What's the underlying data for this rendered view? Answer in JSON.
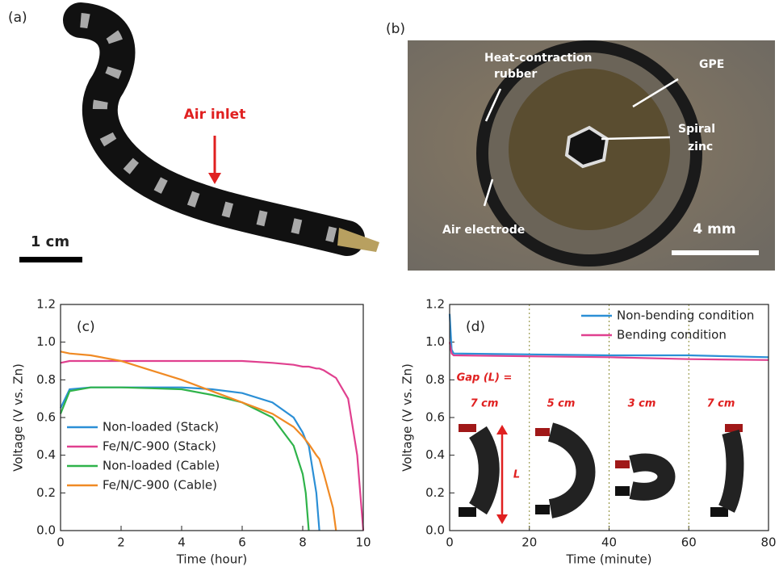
{
  "photos": {
    "a": {
      "label": "(a)",
      "inlet": "Air inlet",
      "scale": "1 cm"
    },
    "b": {
      "label": "(b)",
      "rubber": [
        "Heat-contraction",
        "rubber"
      ],
      "gpe": "GPE",
      "zinc": [
        "Spiral",
        "zinc"
      ],
      "electrode": "Air electrode",
      "scale": "4 mm"
    }
  },
  "chart_data": [
    {
      "type": "line",
      "label": "(c)",
      "xlabel": "Time (hour)",
      "ylabel": "Voltage (V vs. Zn)",
      "x": [
        0,
        0.3,
        1,
        2,
        3,
        4,
        5,
        6,
        7,
        7.7,
        8,
        8.1,
        8.2,
        8.45,
        8.55,
        8.7,
        9,
        9.1,
        9.5,
        9.8,
        10
      ],
      "series": [
        {
          "name": "Non-loaded (Stack)",
          "color": "#2b8fd6",
          "values": [
            0.65,
            0.75,
            0.76,
            0.76,
            0.76,
            0.76,
            0.75,
            0.73,
            0.68,
            0.6,
            0.52,
            0.48,
            0.45,
            0.2,
            0,
            null,
            null,
            null,
            null,
            null,
            null
          ]
        },
        {
          "name": "Fe/N/C-900 (Stack)",
          "color": "#e0408f",
          "values": [
            0.89,
            0.9,
            0.9,
            0.9,
            0.9,
            0.9,
            0.9,
            0.9,
            0.89,
            0.88,
            0.87,
            0.87,
            0.87,
            0.86,
            0.86,
            0.85,
            0.82,
            0.81,
            0.7,
            0.4,
            0
          ]
        },
        {
          "name": "Non-loaded (Cable)",
          "color": "#2fb34a",
          "values": [
            0.62,
            0.74,
            0.76,
            0.76,
            0.755,
            0.75,
            0.72,
            0.68,
            0.6,
            0.45,
            0.3,
            0.2,
            0,
            null,
            null,
            null,
            null,
            null,
            null,
            null,
            null
          ]
        },
        {
          "name": "Fe/N/C-900 (Cable)",
          "color": "#f08a24",
          "values": [
            0.95,
            0.94,
            0.93,
            0.9,
            0.85,
            0.8,
            0.74,
            0.68,
            0.62,
            0.55,
            0.5,
            0.48,
            0.46,
            0.4,
            0.38,
            0.3,
            0.12,
            0,
            null,
            null,
            null
          ]
        }
      ],
      "xlim": [
        0,
        10
      ],
      "xticks": [
        0,
        2,
        4,
        6,
        8,
        10
      ],
      "ylim": [
        0,
        1.2
      ],
      "yticks": [
        {
          "value": 0,
          "label": "0.0"
        },
        0.2,
        0.4,
        0.6,
        0.8,
        {
          "value": 1,
          "label": "1.0"
        },
        1.2
      ],
      "legend": "lower left"
    },
    {
      "type": "line",
      "label": "(d)",
      "xlabel": "Time (minute)",
      "ylabel": "Voltage (V vs. Zn)",
      "x": [
        0,
        0.5,
        1,
        20,
        40,
        60,
        80
      ],
      "series": [
        {
          "name": "Non-bending condition",
          "color": "#2b8fd6",
          "values": [
            1.15,
            0.96,
            0.94,
            0.935,
            0.93,
            0.93,
            0.92
          ]
        },
        {
          "name": "Bending condition",
          "color": "#e0408f",
          "values": [
            1.0,
            0.94,
            0.93,
            0.925,
            0.92,
            0.91,
            0.905
          ]
        }
      ],
      "xlim": [
        0,
        80
      ],
      "xticks": [
        0,
        20,
        40,
        60,
        80
      ],
      "ylim": [
        0,
        1.2
      ],
      "yticks": [
        {
          "value": 0,
          "label": "0.0"
        },
        0.2,
        0.4,
        0.6,
        0.8,
        {
          "value": 1,
          "label": "1.0"
        },
        1.2
      ],
      "vlines": [
        20,
        40,
        60
      ],
      "annotations": [
        "Gap (L) =",
        "7 cm",
        "5 cm",
        "3 cm",
        "7 cm",
        "L"
      ],
      "legend": "upper right"
    }
  ]
}
